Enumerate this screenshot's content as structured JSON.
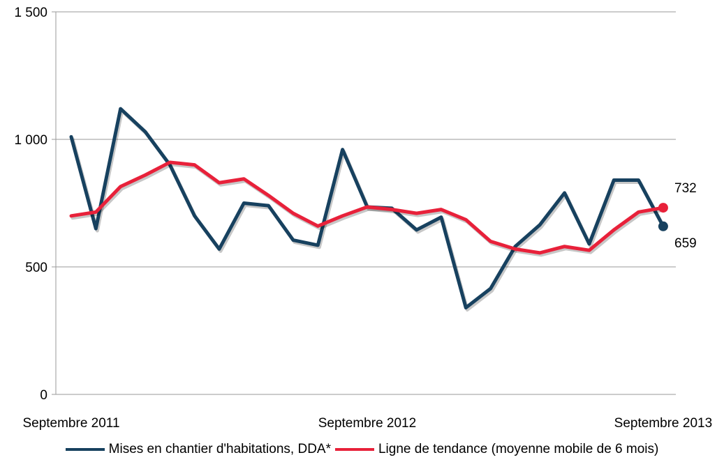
{
  "chart_data": {
    "type": "line",
    "y_ticks": [
      "0",
      "500",
      "1 000",
      "1 500"
    ],
    "ylim": [
      0,
      1500
    ],
    "x_tick_labels": [
      "Septembre 2011",
      "Septembre 2012",
      "Septembre 2013"
    ],
    "x_tick_index": [
      0,
      12,
      24
    ],
    "grid": true,
    "legend_position": "bottom",
    "series": [
      {
        "name": "Mises en chantier d'habitations, DDA*",
        "color": "#17415f",
        "values": [
          1010,
          650,
          1120,
          1030,
          900,
          700,
          570,
          750,
          740,
          605,
          585,
          960,
          735,
          730,
          645,
          695,
          340,
          415,
          580,
          665,
          790,
          590,
          840,
          840,
          659
        ],
        "end_label": "659"
      },
      {
        "name": "Ligne de tendance (moyenne mobile de 6 mois)",
        "color": "#e8213a",
        "values": [
          700,
          715,
          815,
          860,
          910,
          900,
          830,
          845,
          780,
          710,
          660,
          700,
          735,
          725,
          710,
          725,
          685,
          600,
          570,
          555,
          580,
          565,
          645,
          715,
          732
        ],
        "end_label": "732"
      }
    ]
  }
}
